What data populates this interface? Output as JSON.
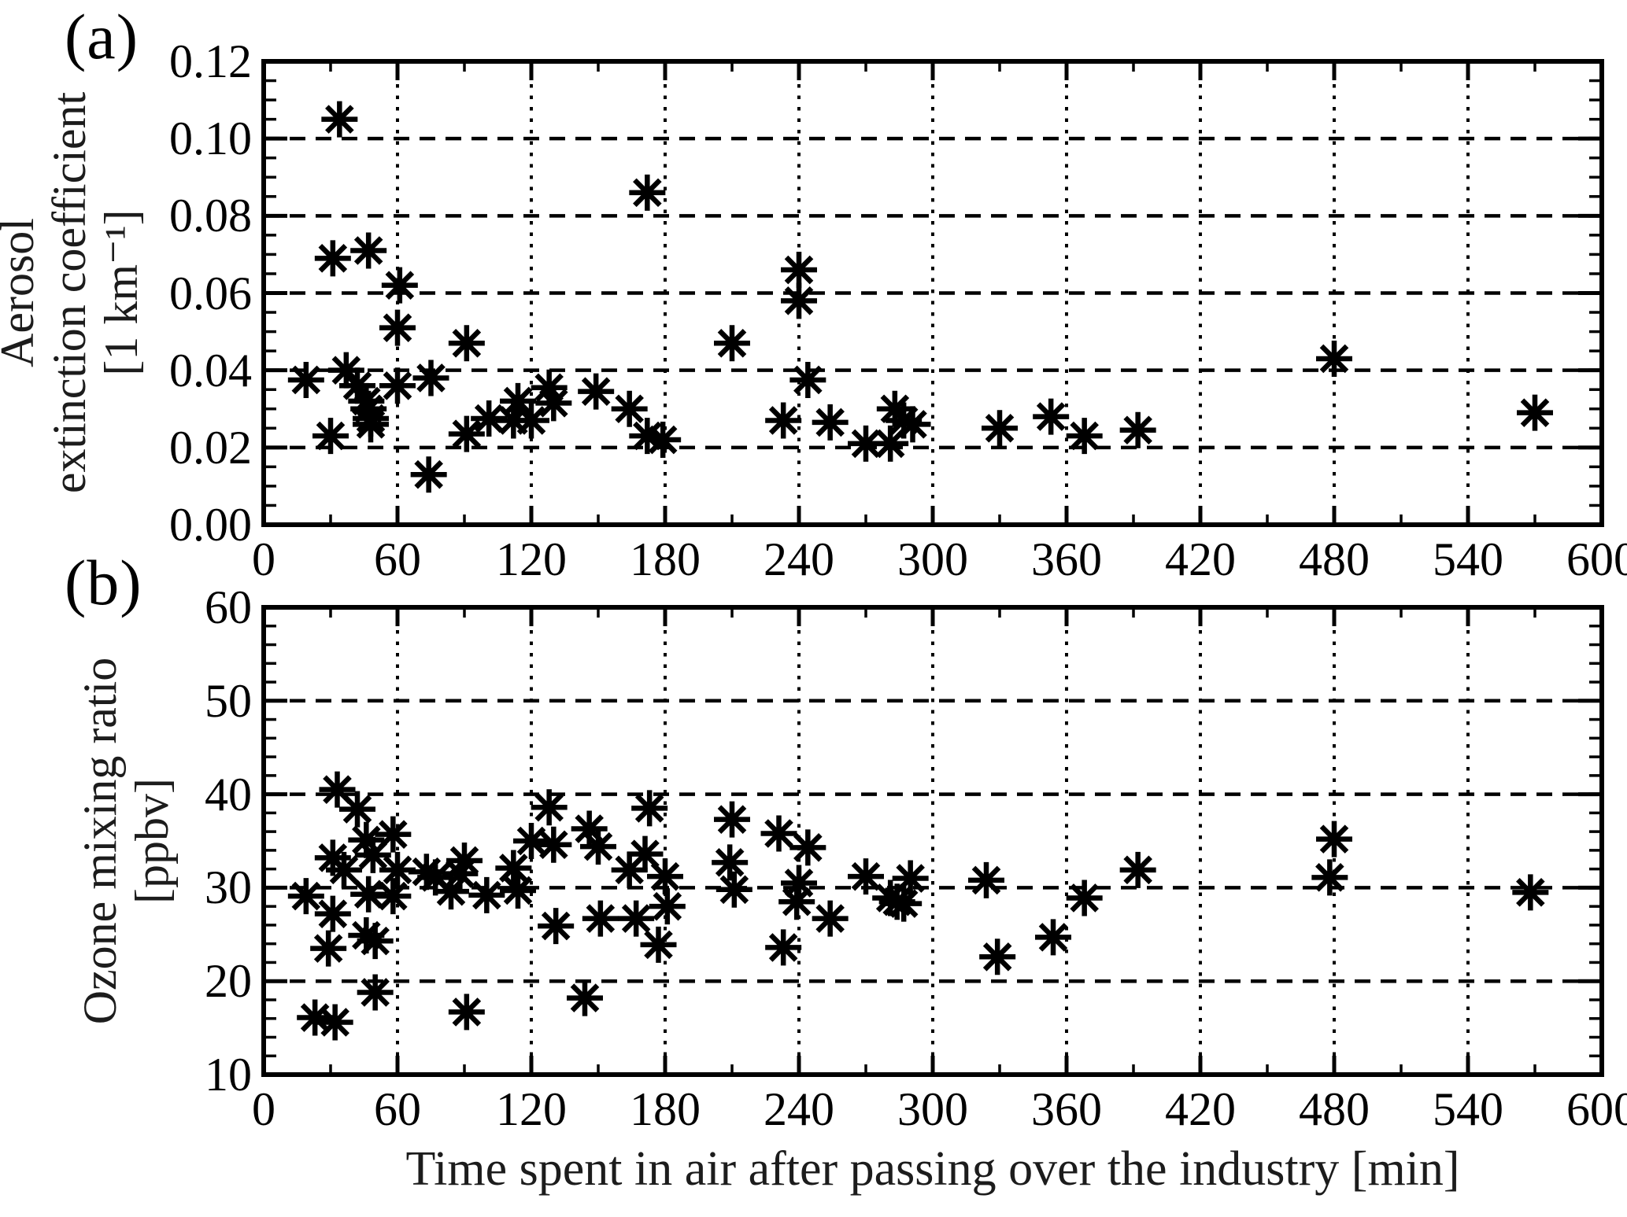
{
  "figure": {
    "xlabel": "Time spent in air after passing over the industry [min]"
  },
  "chart_data": [
    {
      "type": "scatter",
      "panel_label": "(a)",
      "title": "",
      "ylabel": "Aerosol extinction coefficient [1 km⁻¹]",
      "ylabel_lines": [
        "Aerosol",
        "extinction coefficient",
        "[1 km⁻¹]"
      ],
      "xlabel": "Time spent in air after passing over the industry [min]",
      "xlim": [
        0,
        600
      ],
      "ylim": [
        0,
        0.12
      ],
      "x_major_step": 60,
      "x_minor_step": 30,
      "y_major_step": 0.02,
      "y_minor_step": 0.005,
      "grid": {
        "horizontal": "dashed",
        "vertical": "dotted",
        "color": "#000000"
      },
      "legend": "none",
      "marker": "asterisk-8-spoke",
      "marker_color": "#000000",
      "xtick_labels": [
        "0",
        "60",
        "120",
        "180",
        "240",
        "300",
        "360",
        "420",
        "480",
        "540",
        "600"
      ],
      "ytick_values": [
        0.0,
        0.02,
        0.04,
        0.06,
        0.08,
        0.1,
        0.12
      ],
      "ytick_labels": [
        "0.00",
        "0.02",
        "0.04",
        "0.06",
        "0.08",
        "0.10",
        "0.12"
      ],
      "points": [
        [
          19,
          0.0375
        ],
        [
          30,
          0.023
        ],
        [
          31,
          0.069
        ],
        [
          34,
          0.105
        ],
        [
          37,
          0.04
        ],
        [
          42,
          0.036
        ],
        [
          46,
          0.032
        ],
        [
          47,
          0.071
        ],
        [
          47,
          0.03
        ],
        [
          48,
          0.0275
        ],
        [
          48,
          0.026
        ],
        [
          60,
          0.036
        ],
        [
          60,
          0.051
        ],
        [
          61,
          0.062
        ],
        [
          74,
          0.013
        ],
        [
          75,
          0.038
        ],
        [
          91,
          0.047
        ],
        [
          91,
          0.0235
        ],
        [
          101,
          0.0275
        ],
        [
          112,
          0.027
        ],
        [
          114,
          0.032
        ],
        [
          120,
          0.027
        ],
        [
          128,
          0.0355
        ],
        [
          130,
          0.0315
        ],
        [
          149,
          0.0345
        ],
        [
          164,
          0.03
        ],
        [
          172,
          0.086
        ],
        [
          172,
          0.023
        ],
        [
          179,
          0.022
        ],
        [
          210,
          0.047
        ],
        [
          233,
          0.027
        ],
        [
          240,
          0.066
        ],
        [
          240,
          0.058
        ],
        [
          244,
          0.0375
        ],
        [
          254,
          0.0265
        ],
        [
          270,
          0.021
        ],
        [
          281,
          0.021
        ],
        [
          283,
          0.03
        ],
        [
          287,
          0.027
        ],
        [
          291,
          0.026
        ],
        [
          330,
          0.025
        ],
        [
          353,
          0.028
        ],
        [
          368,
          0.023
        ],
        [
          392,
          0.0245
        ],
        [
          480,
          0.043
        ],
        [
          570,
          0.029
        ]
      ]
    },
    {
      "type": "scatter",
      "panel_label": "(b)",
      "title": "",
      "ylabel": "Ozone mixing ratio [ppbv]",
      "ylabel_lines": [
        "Ozone mixing ratio",
        "[ppbv]"
      ],
      "xlabel": "Time spent in air after passing over the industry [min]",
      "xlim": [
        0,
        600
      ],
      "ylim": [
        10,
        60
      ],
      "x_major_step": 60,
      "x_minor_step": 30,
      "y_major_step": 10,
      "y_minor_step": 2,
      "grid": {
        "horizontal": "dashed",
        "vertical": "dotted",
        "color": "#000000"
      },
      "legend": "none",
      "marker": "asterisk-8-spoke",
      "marker_color": "#000000",
      "xtick_labels": [
        "0",
        "60",
        "120",
        "180",
        "240",
        "300",
        "360",
        "420",
        "480",
        "540",
        "600"
      ],
      "ytick_values": [
        10,
        20,
        30,
        40,
        50,
        60
      ],
      "ytick_labels": [
        "10",
        "20",
        "30",
        "40",
        "50",
        "60"
      ],
      "points": [
        [
          19,
          29.1
        ],
        [
          23,
          16.1
        ],
        [
          29,
          23.5
        ],
        [
          31,
          33.2
        ],
        [
          31,
          27.2
        ],
        [
          32,
          15.6
        ],
        [
          33,
          40.5
        ],
        [
          36,
          31.9
        ],
        [
          42,
          38.4
        ],
        [
          46,
          35.1
        ],
        [
          46,
          24.9
        ],
        [
          47,
          29.3
        ],
        [
          49,
          33.5
        ],
        [
          50,
          24.3
        ],
        [
          50,
          18.8
        ],
        [
          58,
          35.7
        ],
        [
          58,
          29.1
        ],
        [
          60,
          31.9
        ],
        [
          73,
          31.7
        ],
        [
          77,
          31.1
        ],
        [
          84,
          29.6
        ],
        [
          88,
          31.5
        ],
        [
          90,
          32.9
        ],
        [
          91,
          16.7
        ],
        [
          100,
          29.2
        ],
        [
          112,
          32.1
        ],
        [
          114,
          29.7
        ],
        [
          120,
          35.0
        ],
        [
          128,
          38.6
        ],
        [
          130,
          34.6
        ],
        [
          131,
          25.9
        ],
        [
          144,
          18.2
        ],
        [
          146,
          36.3
        ],
        [
          150,
          34.4
        ],
        [
          151,
          26.7
        ],
        [
          164,
          31.9
        ],
        [
          167,
          26.7
        ],
        [
          171,
          33.6
        ],
        [
          173,
          38.5
        ],
        [
          177,
          23.9
        ],
        [
          180,
          31.2
        ],
        [
          181,
          28.0
        ],
        [
          209,
          32.7
        ],
        [
          210,
          37.3
        ],
        [
          211,
          29.8
        ],
        [
          231,
          35.8
        ],
        [
          233,
          23.6
        ],
        [
          239,
          28.5
        ],
        [
          240,
          30.5
        ],
        [
          244,
          34.3
        ],
        [
          254,
          26.7
        ],
        [
          270,
          31.2
        ],
        [
          281,
          28.9
        ],
        [
          284,
          28.5
        ],
        [
          287,
          28.3
        ],
        [
          290,
          31.0
        ],
        [
          324,
          30.8
        ],
        [
          329,
          22.6
        ],
        [
          354,
          24.7
        ],
        [
          368,
          28.9
        ],
        [
          392,
          31.9
        ],
        [
          478,
          31.1
        ],
        [
          480,
          35.2
        ],
        [
          568,
          29.5
        ]
      ]
    }
  ]
}
